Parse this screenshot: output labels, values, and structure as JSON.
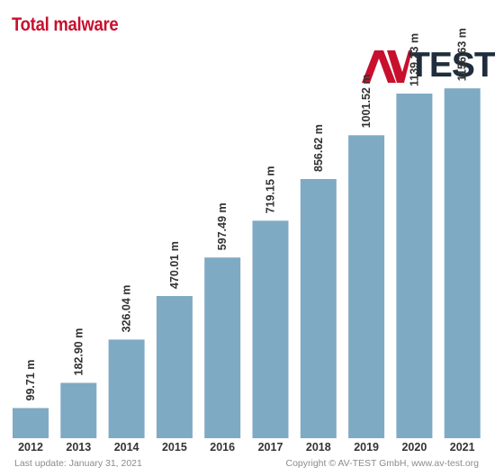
{
  "title": "Total malware",
  "logo": {
    "text": "TEST",
    "mark": "AV"
  },
  "footer": {
    "last_update": "Last update: January 31, 2021",
    "copyright": "Copyright © AV-TEST GmbH, www.av-test.org"
  },
  "colors": {
    "bar": "#7faac4",
    "title": "#c8102e",
    "text": "#333333",
    "logo_mark": "#c8102e",
    "logo_text": "#1f2d3d"
  },
  "chart_data": {
    "type": "bar",
    "categories": [
      "2012",
      "2013",
      "2014",
      "2015",
      "2016",
      "2017",
      "2018",
      "2019",
      "2020",
      "2021"
    ],
    "values": [
      99.71,
      182.9,
      326.04,
      470.01,
      597.49,
      719.15,
      856.62,
      1001.52,
      1139.23,
      1156.63
    ],
    "value_labels": [
      "99.71 m",
      "182.90 m",
      "326.04 m",
      "470.01 m",
      "597.49 m",
      "719.15 m",
      "856.62 m",
      "1001.52 m",
      "1139.23 m",
      "1156.63 m"
    ],
    "unit": "m",
    "ylim": [
      0,
      1300
    ],
    "grid": false,
    "legend": "none"
  }
}
